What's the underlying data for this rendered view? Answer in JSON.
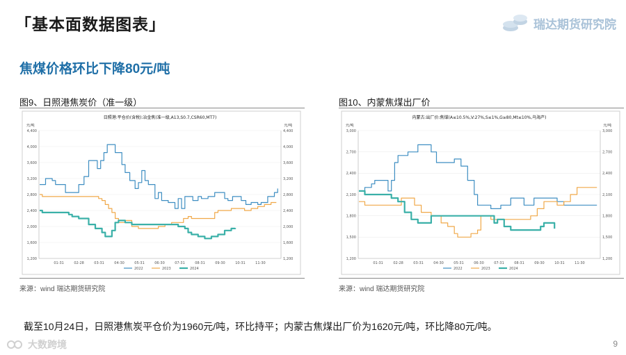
{
  "header": {
    "title": "「基本面数据图表」",
    "brand": "瑞达期货研究院"
  },
  "subtitle": "焦煤价格环比下降80元/吨",
  "summary": "截至10月24日，日照港焦炭平仓价为1960元/吨，环比持平；内蒙古焦煤出厂价为1620元/吨，环比降80元/吨。",
  "footer": {
    "logo_text": "大数跨境",
    "page": "9"
  },
  "colors": {
    "s2022": "#3e8ec2",
    "s2023": "#f0a848",
    "s2024": "#3ab0a8",
    "title_blue": "#1f6fa7"
  },
  "chart_data": [
    {
      "type": "line",
      "figure_title": "图9、日照港焦炭价（准一级）",
      "title": "日照港:平仓价(含税):冶金焦(准一级,A13,S0.7,CSR60,MT7)",
      "unit_left": "元/吨",
      "unit_right": "元/吨",
      "ylim": [
        1200,
        4400
      ],
      "yticks": [
        "1,200",
        "1,600",
        "2,000",
        "2,400",
        "2,800",
        "3,200",
        "3,600",
        "4,000",
        "4,400"
      ],
      "xticks": [
        "01-31",
        "02-28",
        "03-31",
        "04-30",
        "05-31",
        "06-30",
        "07-31",
        "08-31",
        "09-30",
        "10-31",
        "11-30"
      ],
      "legend": [
        "2022",
        "2023",
        "2024"
      ],
      "source": "来源：wind  瑞达期货研究院",
      "series": [
        {
          "name": "2022",
          "x": [
            1,
            10,
            20,
            25,
            40,
            47,
            60,
            68,
            75,
            85,
            88,
            93,
            98,
            103,
            110,
            115,
            125,
            130,
            137,
            145,
            150,
            155,
            160,
            165,
            175,
            180,
            185,
            195,
            205,
            210,
            215,
            220,
            228,
            232,
            240,
            245,
            255,
            265,
            272,
            280,
            285,
            292,
            300,
            305,
            312,
            320,
            330,
            335,
            345,
            355,
            360
          ],
          "values": [
            3050,
            3200,
            3150,
            3050,
            2850,
            2850,
            3050,
            3250,
            3650,
            3650,
            3450,
            3650,
            3850,
            4050,
            4050,
            3850,
            3550,
            3350,
            3150,
            2950,
            3100,
            3400,
            3150,
            3050,
            2700,
            2850,
            2650,
            2600,
            2450,
            2700,
            2450,
            2750,
            2750,
            2650,
            2750,
            2700,
            2750,
            2850,
            2850,
            2700,
            2650,
            2750,
            2750,
            2650,
            2550,
            2600,
            2550,
            2600,
            2750,
            2850,
            2950
          ]
        },
        {
          "name": "2023",
          "x": [
            1,
            5,
            15,
            30,
            50,
            70,
            90,
            95,
            100,
            105,
            110,
            115,
            120,
            130,
            140,
            150,
            155,
            160,
            170,
            180,
            190,
            200,
            210,
            218,
            225,
            230,
            240,
            250,
            260,
            265,
            270,
            280,
            290,
            300,
            310,
            320,
            330,
            340,
            350,
            358
          ],
          "values": [
            2800,
            2750,
            2750,
            2750,
            2750,
            2750,
            2700,
            2650,
            2550,
            2450,
            2350,
            2200,
            2100,
            2150,
            2000,
            1950,
            1950,
            1950,
            1950,
            2000,
            2050,
            2100,
            2100,
            2200,
            2250,
            2200,
            2200,
            2200,
            2200,
            2350,
            2400,
            2400,
            2450,
            2450,
            2400,
            2450,
            2500,
            2550,
            2600,
            2600
          ]
        },
        {
          "name": "2024",
          "x": [
            1,
            5,
            15,
            30,
            45,
            50,
            60,
            75,
            85,
            95,
            100,
            110,
            115,
            120,
            130,
            140,
            150,
            160,
            170,
            185,
            200,
            210,
            220,
            225,
            230,
            240,
            250,
            255,
            260,
            270,
            280,
            290,
            296
          ],
          "values": [
            2400,
            2350,
            2350,
            2350,
            2300,
            2250,
            2200,
            2050,
            1950,
            1850,
            1750,
            1900,
            2100,
            2150,
            2100,
            2050,
            2050,
            2050,
            2050,
            2050,
            2050,
            2000,
            1950,
            1850,
            1800,
            1750,
            1700,
            1700,
            1750,
            1800,
            1900,
            1950,
            1960
          ]
        }
      ]
    },
    {
      "type": "line",
      "figure_title": "图10、内蒙焦煤出厂价",
      "title": "内蒙古:出厂价:焦煤(A≤10.5%,V:27%,S≤1%,G≥80,Mt≤10%,乌海产)",
      "unit_left": "元/吨",
      "unit_right": "元/吨",
      "ylim": [
        1200,
        3000
      ],
      "yticks": [
        "1,200",
        "1,500",
        "1,800",
        "2,100",
        "2,400",
        "2,700",
        "3,000"
      ],
      "xticks": [
        "01-31",
        "02-28",
        "03-31",
        "04-30",
        "05-31",
        "06-30",
        "07-31",
        "08-31",
        "09-30",
        "10-31",
        "11-30"
      ],
      "legend": [
        "2022",
        "2023",
        "2024"
      ],
      "source": "来源：wind  瑞达期货研究院",
      "series": [
        {
          "name": "2022",
          "x": [
            1,
            10,
            20,
            25,
            35,
            45,
            50,
            55,
            60,
            65,
            70,
            75,
            80,
            90,
            100,
            110,
            118,
            125,
            135,
            145,
            155,
            160,
            165,
            175,
            180,
            190,
            200,
            215,
            230,
            240,
            250,
            265,
            280,
            290,
            300,
            310,
            320,
            330,
            345,
            360
          ],
          "values": [
            2150,
            2200,
            2250,
            2300,
            2300,
            2150,
            2300,
            2550,
            2650,
            2650,
            2650,
            2700,
            2700,
            2800,
            2800,
            2700,
            2550,
            2550,
            2550,
            2600,
            2500,
            2500,
            2300,
            2100,
            1950,
            1950,
            1900,
            1950,
            2050,
            2050,
            1950,
            2050,
            2050,
            2050,
            2000,
            1950,
            1950,
            1950,
            1950,
            1950
          ]
        },
        {
          "name": "2023",
          "x": [
            1,
            10,
            25,
            40,
            55,
            65,
            75,
            85,
            95,
            110,
            125,
            135,
            145,
            150,
            160,
            170,
            180,
            185,
            200,
            220,
            240,
            260,
            270,
            280,
            290,
            300,
            310,
            320,
            330,
            340,
            360
          ],
          "values": [
            2000,
            1950,
            1950,
            1950,
            1950,
            2050,
            2050,
            1950,
            1850,
            1800,
            1700,
            1650,
            1550,
            1500,
            1500,
            1550,
            1600,
            1800,
            1750,
            1750,
            1750,
            1800,
            1900,
            2000,
            2000,
            1950,
            2000,
            2100,
            2200,
            2200,
            2200
          ]
        },
        {
          "name": "2024",
          "x": [
            1,
            10,
            20,
            35,
            50,
            60,
            70,
            80,
            90,
            100,
            110,
            125,
            140,
            160,
            180,
            200,
            205,
            210,
            220,
            230,
            250,
            260,
            270,
            275,
            280,
            285,
            290,
            296
          ],
          "values": [
            2150,
            2100,
            2100,
            2100,
            2050,
            2000,
            1850,
            1750,
            1700,
            1700,
            1800,
            1800,
            1800,
            1800,
            1800,
            1800,
            1700,
            1750,
            1650,
            1600,
            1600,
            1600,
            1600,
            1650,
            1700,
            1700,
            1700,
            1620
          ]
        }
      ]
    }
  ]
}
